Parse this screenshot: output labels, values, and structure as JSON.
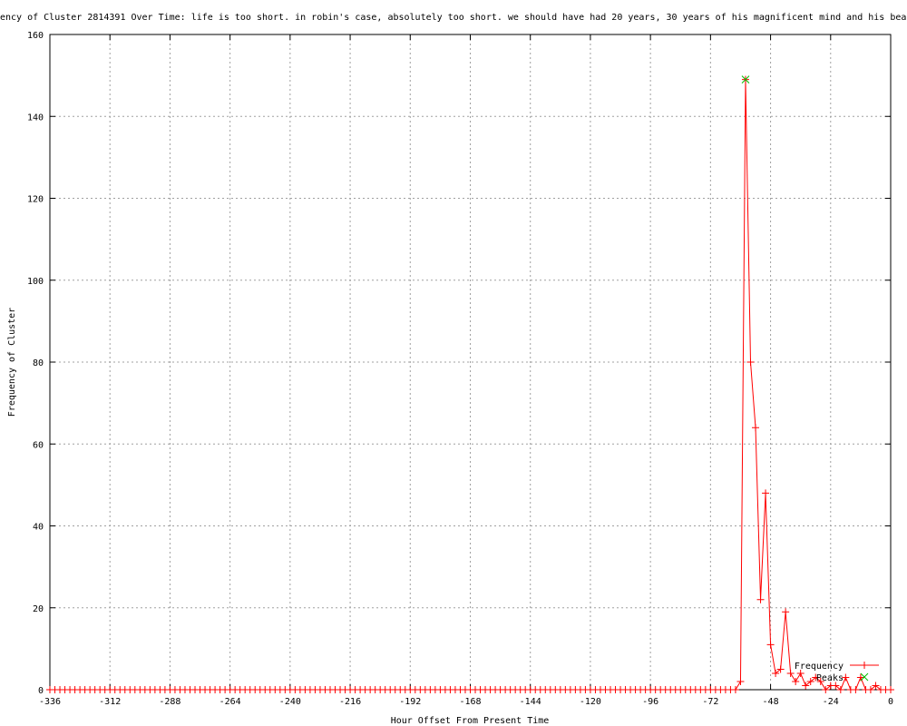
{
  "chart_data": {
    "type": "line",
    "title": "ency of Cluster 2814391 Over Time: life is too short. in robin's case, absolutely too short. we should have had 20 years, 30 years of his magnificent mind and his beau",
    "xlabel": "Hour Offset From Present Time",
    "ylabel": "Frequency of Cluster",
    "xlim": [
      -336,
      0
    ],
    "ylim": [
      0,
      160
    ],
    "xticks": [
      -336,
      -312,
      -288,
      -264,
      -240,
      -216,
      -192,
      -168,
      -144,
      -120,
      -96,
      -72,
      -48,
      -24,
      0
    ],
    "yticks": [
      0,
      20,
      40,
      60,
      80,
      100,
      120,
      140,
      160
    ],
    "grid": true,
    "legend_position": "bottom-right",
    "series": [
      {
        "name": "Frequency",
        "color": "#ff0000",
        "marker": "plus",
        "x": [
          -336,
          -334,
          -332,
          -330,
          -328,
          -326,
          -324,
          -322,
          -320,
          -318,
          -316,
          -314,
          -312,
          -310,
          -308,
          -306,
          -304,
          -302,
          -300,
          -298,
          -296,
          -294,
          -292,
          -290,
          -288,
          -286,
          -284,
          -282,
          -280,
          -278,
          -276,
          -274,
          -272,
          -270,
          -268,
          -266,
          -264,
          -262,
          -260,
          -258,
          -256,
          -254,
          -252,
          -250,
          -248,
          -246,
          -244,
          -242,
          -240,
          -238,
          -236,
          -234,
          -232,
          -230,
          -228,
          -226,
          -224,
          -222,
          -220,
          -218,
          -216,
          -214,
          -212,
          -210,
          -208,
          -206,
          -204,
          -202,
          -200,
          -198,
          -196,
          -194,
          -192,
          -190,
          -188,
          -186,
          -184,
          -182,
          -180,
          -178,
          -176,
          -174,
          -172,
          -170,
          -168,
          -166,
          -164,
          -162,
          -160,
          -158,
          -156,
          -154,
          -152,
          -150,
          -148,
          -146,
          -144,
          -142,
          -140,
          -138,
          -136,
          -134,
          -132,
          -130,
          -128,
          -126,
          -124,
          -122,
          -120,
          -118,
          -116,
          -114,
          -112,
          -110,
          -108,
          -106,
          -104,
          -102,
          -100,
          -98,
          -96,
          -94,
          -92,
          -90,
          -88,
          -86,
          -84,
          -82,
          -80,
          -78,
          -76,
          -74,
          -72,
          -70,
          -68,
          -66,
          -64,
          -62,
          -60,
          -58,
          -56,
          -54,
          -52,
          -50,
          -48,
          -46,
          -44,
          -42,
          -40,
          -38,
          -36,
          -34,
          -32,
          -30,
          -28,
          -26,
          -24,
          -22,
          -20,
          -18,
          -16,
          -14,
          -12,
          -10,
          -8,
          -6,
          -4,
          -2,
          0
        ],
        "y": [
          0,
          0,
          0,
          0,
          0,
          0,
          0,
          0,
          0,
          0,
          0,
          0,
          0,
          0,
          0,
          0,
          0,
          0,
          0,
          0,
          0,
          0,
          0,
          0,
          0,
          0,
          0,
          0,
          0,
          0,
          0,
          0,
          0,
          0,
          0,
          0,
          0,
          0,
          0,
          0,
          0,
          0,
          0,
          0,
          0,
          0,
          0,
          0,
          0,
          0,
          0,
          0,
          0,
          0,
          0,
          0,
          0,
          0,
          0,
          0,
          0,
          0,
          0,
          0,
          0,
          0,
          0,
          0,
          0,
          0,
          0,
          0,
          0,
          0,
          0,
          0,
          0,
          0,
          0,
          0,
          0,
          0,
          0,
          0,
          0,
          0,
          0,
          0,
          0,
          0,
          0,
          0,
          0,
          0,
          0,
          0,
          0,
          0,
          0,
          0,
          0,
          0,
          0,
          0,
          0,
          0,
          0,
          0,
          0,
          0,
          0,
          0,
          0,
          0,
          0,
          0,
          0,
          0,
          0,
          0,
          0,
          0,
          0,
          0,
          0,
          0,
          0,
          0,
          0,
          0,
          0,
          0,
          0,
          0,
          0,
          0,
          0,
          0,
          2,
          149,
          80,
          64,
          22,
          48,
          11,
          4,
          5,
          19,
          4,
          2,
          4,
          1,
          2,
          3,
          2,
          0,
          1,
          1,
          0,
          3,
          0,
          0,
          3,
          0,
          0,
          1,
          0,
          0,
          0
        ]
      },
      {
        "name": "Peaks",
        "color": "#00c000",
        "marker": "cross",
        "x": [
          -58
        ],
        "y": [
          149
        ]
      }
    ]
  }
}
